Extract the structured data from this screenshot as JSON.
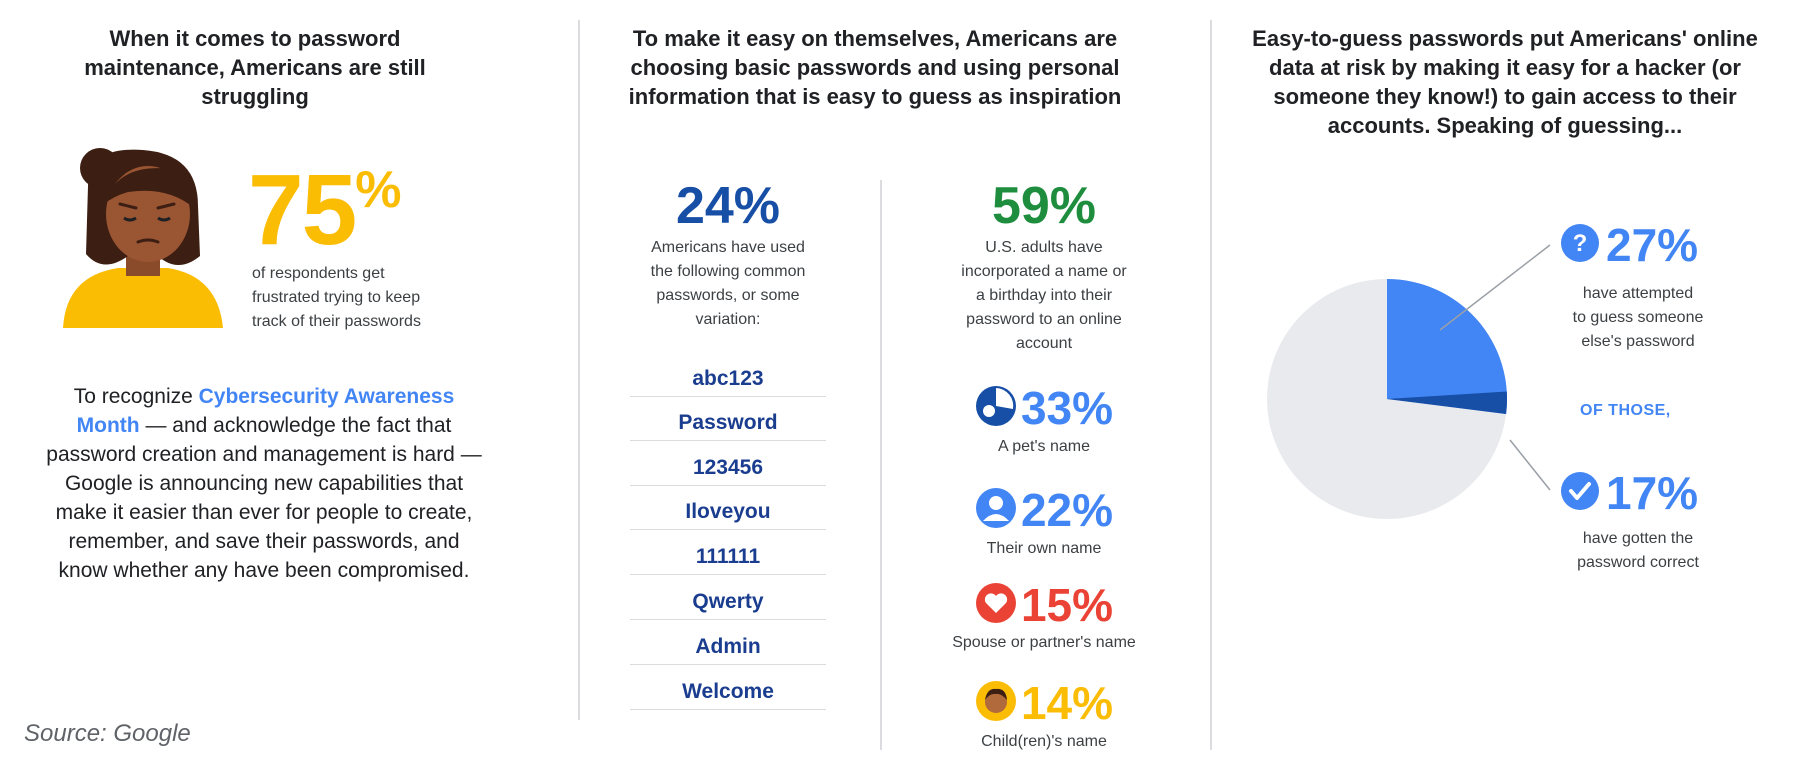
{
  "col1": {
    "heading": "When it comes to password maintenance, Americans are still struggling",
    "stat_value": "75",
    "stat_suffix": "%",
    "stat_desc_1": "of respondents get",
    "stat_desc_2": "frustrated trying to keep",
    "stat_desc_3": "track of their passwords",
    "para_1": "To recognize ",
    "para_hl": "Cybersecurity Awareness Month",
    "para_2": " — and acknowledge the fact that password creation and management is hard — Google is announcing new capabilities that make it easier than ever for people to create, remember, and save their passwords, and know whether any have been compromised.",
    "avatar_icon": "woman-avatar-icon"
  },
  "col2": {
    "heading": "To make it easy on themselves, Americans are choosing basic passwords and using personal information that is easy to guess as inspiration",
    "left_stat": "24%",
    "left_desc": [
      "Americans have used",
      "the following common",
      "passwords, or some",
      "variation:"
    ],
    "passwords": [
      "abc123",
      "Password",
      "123456",
      "Iloveyou",
      "111111",
      "Qwerty",
      "Admin",
      "Welcome"
    ],
    "right_stat": "59%",
    "right_desc": [
      "U.S. adults have",
      "incorporated a name or",
      "a birthday into their",
      "password to an online",
      "account"
    ],
    "breakdown": [
      {
        "value": "33%",
        "label": "A pet's name",
        "icon": "pet-icon",
        "color": "#4285f4"
      },
      {
        "value": "22%",
        "label": "Their own name",
        "icon": "person-icon",
        "color": "#4285f4"
      },
      {
        "value": "15%",
        "label": "Spouse or partner's name",
        "icon": "heart-icon",
        "color": "#ea4335"
      },
      {
        "value": "14%",
        "label": "Child(ren)'s name",
        "icon": "child-icon",
        "color": "#fbbc04"
      }
    ]
  },
  "col3": {
    "heading": "Easy-to-guess passwords put Americans' online data at risk by making it easy for a hacker (or someone they know!) to gain access to their accounts. Speaking of guessing...",
    "stat1_value": "27%",
    "stat1_desc": [
      "have attempted",
      "to guess someone",
      "else's password"
    ],
    "stat1_icon": "question-icon",
    "of_those": "OF THOSE,",
    "stat2_value": "17%",
    "stat2_desc": [
      "have gotten the",
      "password correct"
    ],
    "stat2_icon": "check-icon"
  },
  "source": "Source: Google",
  "colors": {
    "yellow": "#fbbc04",
    "blue": "#4285f4",
    "dark_blue": "#174ea6",
    "green": "#1e8e3e",
    "red": "#ea4335",
    "pie_grey": "#e8eaed"
  },
  "pie": {
    "guessed_fraction": 0.27,
    "correct_fraction": 0.17
  }
}
